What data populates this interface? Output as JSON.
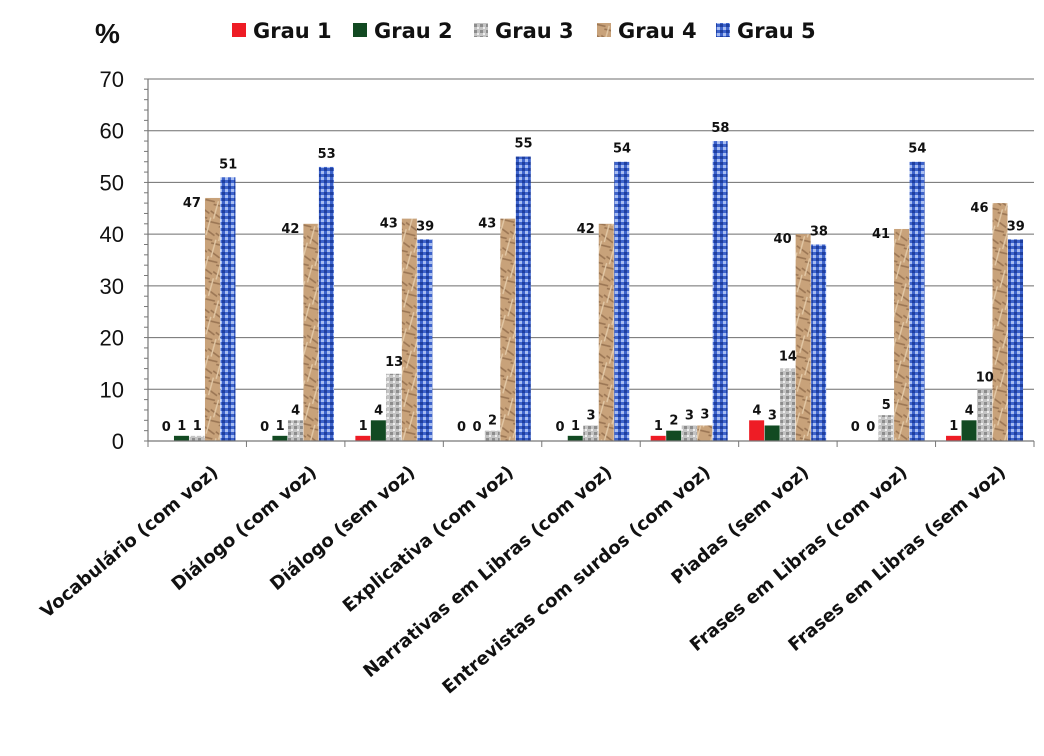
{
  "chart_data": {
    "type": "bar",
    "ylabel": "%",
    "ylim": [
      0,
      70
    ],
    "yticks": [
      0,
      10,
      20,
      30,
      40,
      50,
      60,
      70
    ],
    "grid": true,
    "legend_position": "top",
    "categories": [
      "Vocabulário (com voz)",
      "Diálogo (com voz)",
      "Diálogo (sem voz)",
      "Explicativa (com voz)",
      "Narrativas em Libras (com voz)",
      "Entrevistas com surdos (com voz)",
      "Piadas (sem voz)",
      "Frases em Libras (com voz)",
      "Frases em Libras (sem voz)"
    ],
    "series": [
      {
        "name": "Grau 1",
        "color": "#ee1c25",
        "values": [
          0,
          0,
          1,
          0,
          0,
          1,
          4,
          0,
          1
        ]
      },
      {
        "name": "Grau 2",
        "color": "#124a22",
        "values": [
          1,
          1,
          4,
          0,
          1,
          2,
          3,
          0,
          4
        ]
      },
      {
        "name": "Grau 3",
        "color": "#b9b9b9",
        "values": [
          1,
          4,
          13,
          2,
          3,
          3,
          14,
          5,
          10
        ]
      },
      {
        "name": "Grau 4",
        "color": "#c9a27a",
        "values": [
          47,
          42,
          43,
          43,
          42,
          3,
          40,
          41,
          46
        ]
      },
      {
        "name": "Grau 5",
        "color": "#3d63cc",
        "values": [
          51,
          53,
          39,
          55,
          54,
          58,
          38,
          54,
          39
        ]
      }
    ]
  }
}
